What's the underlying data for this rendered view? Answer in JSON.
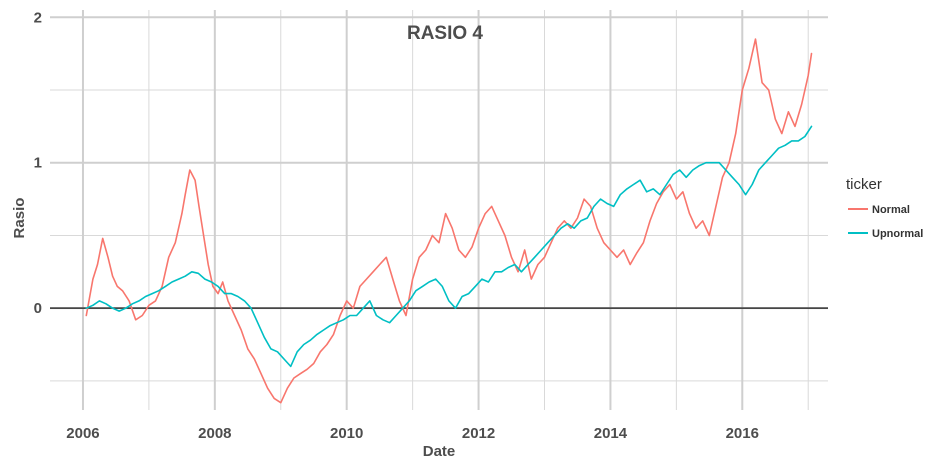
{
  "chart_data": {
    "type": "line",
    "title": "RASIO 4",
    "xlabel": "Date",
    "ylabel": "Rasio",
    "xlim": [
      2005.5,
      2017.3
    ],
    "ylim": [
      -0.7,
      2.05
    ],
    "x_ticks": [
      2006,
      2008,
      2010,
      2012,
      2014,
      2016
    ],
    "y_ticks": [
      0,
      1,
      2
    ],
    "grid": true,
    "reference_line": 0,
    "legend": {
      "title": "ticker",
      "position": "right"
    },
    "series": [
      {
        "name": "Normal",
        "color": "#F8766D",
        "x": [
          2006.05,
          2006.15,
          2006.22,
          2006.3,
          2006.38,
          2006.45,
          2006.52,
          2006.6,
          2006.7,
          2006.8,
          2006.9,
          2007.0,
          2007.1,
          2007.2,
          2007.3,
          2007.4,
          2007.5,
          2007.55,
          2007.62,
          2007.7,
          2007.76,
          2007.83,
          2007.9,
          2007.97,
          2008.05,
          2008.12,
          2008.2,
          2008.3,
          2008.4,
          2008.5,
          2008.6,
          2008.7,
          2008.8,
          2008.9,
          2009.0,
          2009.1,
          2009.2,
          2009.3,
          2009.4,
          2009.5,
          2009.6,
          2009.7,
          2009.8,
          2009.9,
          2010.0,
          2010.1,
          2010.2,
          2010.3,
          2010.4,
          2010.5,
          2010.6,
          2010.7,
          2010.8,
          2010.9,
          2011.0,
          2011.1,
          2011.2,
          2011.3,
          2011.4,
          2011.5,
          2011.6,
          2011.7,
          2011.8,
          2011.9,
          2012.0,
          2012.1,
          2012.2,
          2012.3,
          2012.4,
          2012.5,
          2012.6,
          2012.7,
          2012.8,
          2012.9,
          2013.0,
          2013.1,
          2013.2,
          2013.3,
          2013.4,
          2013.5,
          2013.6,
          2013.7,
          2013.8,
          2013.9,
          2014.0,
          2014.1,
          2014.2,
          2014.3,
          2014.4,
          2014.5,
          2014.6,
          2014.7,
          2014.8,
          2014.9,
          2015.0,
          2015.1,
          2015.2,
          2015.3,
          2015.4,
          2015.5,
          2015.6,
          2015.7,
          2015.8,
          2015.9,
          2016.0,
          2016.1,
          2016.2,
          2016.3,
          2016.4,
          2016.5,
          2016.6,
          2016.7,
          2016.8,
          2016.9,
          2017.0,
          2017.05
        ],
        "y": [
          -0.05,
          0.2,
          0.3,
          0.48,
          0.35,
          0.22,
          0.15,
          0.12,
          0.05,
          -0.08,
          -0.05,
          0.02,
          0.05,
          0.15,
          0.35,
          0.45,
          0.65,
          0.78,
          0.95,
          0.88,
          0.7,
          0.5,
          0.3,
          0.15,
          0.1,
          0.18,
          0.05,
          -0.05,
          -0.15,
          -0.28,
          -0.35,
          -0.45,
          -0.55,
          -0.62,
          -0.65,
          -0.55,
          -0.48,
          -0.45,
          -0.42,
          -0.38,
          -0.3,
          -0.25,
          -0.18,
          -0.05,
          0.05,
          0.0,
          0.15,
          0.2,
          0.25,
          0.3,
          0.35,
          0.2,
          0.05,
          -0.05,
          0.2,
          0.35,
          0.4,
          0.5,
          0.45,
          0.65,
          0.55,
          0.4,
          0.35,
          0.42,
          0.55,
          0.65,
          0.7,
          0.6,
          0.5,
          0.35,
          0.25,
          0.4,
          0.2,
          0.3,
          0.35,
          0.45,
          0.55,
          0.6,
          0.55,
          0.62,
          0.75,
          0.7,
          0.55,
          0.45,
          0.4,
          0.35,
          0.4,
          0.3,
          0.38,
          0.45,
          0.6,
          0.72,
          0.8,
          0.85,
          0.75,
          0.8,
          0.65,
          0.55,
          0.6,
          0.5,
          0.7,
          0.9,
          1.0,
          1.2,
          1.5,
          1.65,
          1.85,
          1.55,
          1.5,
          1.3,
          1.2,
          1.35,
          1.25,
          1.4,
          1.6,
          1.75
        ]
      },
      {
        "name": "Upnormal",
        "color": "#00BFC4",
        "x": [
          2006.05,
          2006.15,
          2006.25,
          2006.35,
          2006.45,
          2006.55,
          2006.65,
          2006.75,
          2006.85,
          2006.95,
          2007.05,
          2007.15,
          2007.25,
          2007.35,
          2007.45,
          2007.55,
          2007.65,
          2007.75,
          2007.85,
          2007.95,
          2008.05,
          2008.15,
          2008.25,
          2008.35,
          2008.45,
          2008.55,
          2008.65,
          2008.75,
          2008.85,
          2008.95,
          2009.05,
          2009.15,
          2009.25,
          2009.35,
          2009.45,
          2009.55,
          2009.65,
          2009.75,
          2009.85,
          2009.95,
          2010.05,
          2010.15,
          2010.25,
          2010.35,
          2010.45,
          2010.55,
          2010.65,
          2010.75,
          2010.85,
          2010.95,
          2011.05,
          2011.15,
          2011.25,
          2011.35,
          2011.45,
          2011.55,
          2011.65,
          2011.75,
          2011.85,
          2011.95,
          2012.05,
          2012.15,
          2012.25,
          2012.35,
          2012.45,
          2012.55,
          2012.65,
          2012.75,
          2012.85,
          2012.95,
          2013.05,
          2013.15,
          2013.25,
          2013.35,
          2013.45,
          2013.55,
          2013.65,
          2013.75,
          2013.85,
          2013.95,
          2014.05,
          2014.15,
          2014.25,
          2014.35,
          2014.45,
          2014.55,
          2014.65,
          2014.75,
          2014.85,
          2014.95,
          2015.05,
          2015.15,
          2015.25,
          2015.35,
          2015.45,
          2015.55,
          2015.65,
          2015.75,
          2015.85,
          2015.95,
          2016.05,
          2016.15,
          2016.25,
          2016.35,
          2016.45,
          2016.55,
          2016.65,
          2016.75,
          2016.85,
          2016.95,
          2017.05
        ],
        "y": [
          0.0,
          0.02,
          0.05,
          0.03,
          0.0,
          -0.02,
          0.0,
          0.03,
          0.05,
          0.08,
          0.1,
          0.12,
          0.15,
          0.18,
          0.2,
          0.22,
          0.25,
          0.24,
          0.2,
          0.18,
          0.15,
          0.1,
          0.1,
          0.08,
          0.05,
          0.0,
          -0.1,
          -0.2,
          -0.28,
          -0.3,
          -0.35,
          -0.4,
          -0.3,
          -0.25,
          -0.22,
          -0.18,
          -0.15,
          -0.12,
          -0.1,
          -0.08,
          -0.05,
          -0.05,
          0.0,
          0.05,
          -0.05,
          -0.08,
          -0.1,
          -0.05,
          0.0,
          0.05,
          0.12,
          0.15,
          0.18,
          0.2,
          0.15,
          0.05,
          0.0,
          0.08,
          0.1,
          0.15,
          0.2,
          0.18,
          0.25,
          0.25,
          0.28,
          0.3,
          0.25,
          0.3,
          0.35,
          0.4,
          0.45,
          0.5,
          0.55,
          0.58,
          0.55,
          0.6,
          0.62,
          0.7,
          0.75,
          0.72,
          0.7,
          0.78,
          0.82,
          0.85,
          0.88,
          0.8,
          0.82,
          0.78,
          0.85,
          0.92,
          0.95,
          0.9,
          0.95,
          0.98,
          1.0,
          1.0,
          1.0,
          0.95,
          0.9,
          0.85,
          0.78,
          0.85,
          0.95,
          1.0,
          1.05,
          1.1,
          1.12,
          1.15,
          1.15,
          1.18,
          1.25
        ]
      }
    ]
  }
}
